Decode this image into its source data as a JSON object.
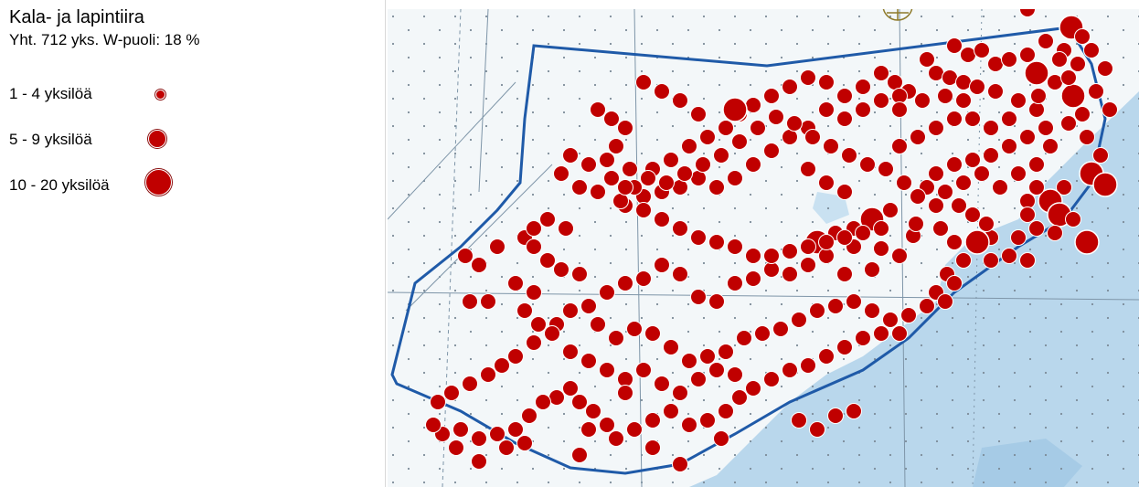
{
  "legend": {
    "title": "Kala- ja lapintiira",
    "subtitle": "Yht. 712 yks. W-puoli: 18 %",
    "classes": [
      {
        "label": "1 - 4 yksilöä",
        "size_class": "small"
      },
      {
        "label": "5 - 9 yksilöä",
        "size_class": "medium"
      },
      {
        "label": "10 - 20 yksilöä",
        "size_class": "large"
      }
    ]
  },
  "colors": {
    "point_fill": "#c00000",
    "point_stroke": "#ffffff",
    "boundary": "#1f5aa8",
    "shallow_water": "#f5f8fa",
    "deep_water": "#b6d6ec",
    "chart_lines": "#6b8aa3"
  },
  "map": {
    "type": "nautical-chart-survey-map",
    "icons": [
      "compass-rose-icon"
    ],
    "symbology": "proportional circles by individual count class"
  }
}
